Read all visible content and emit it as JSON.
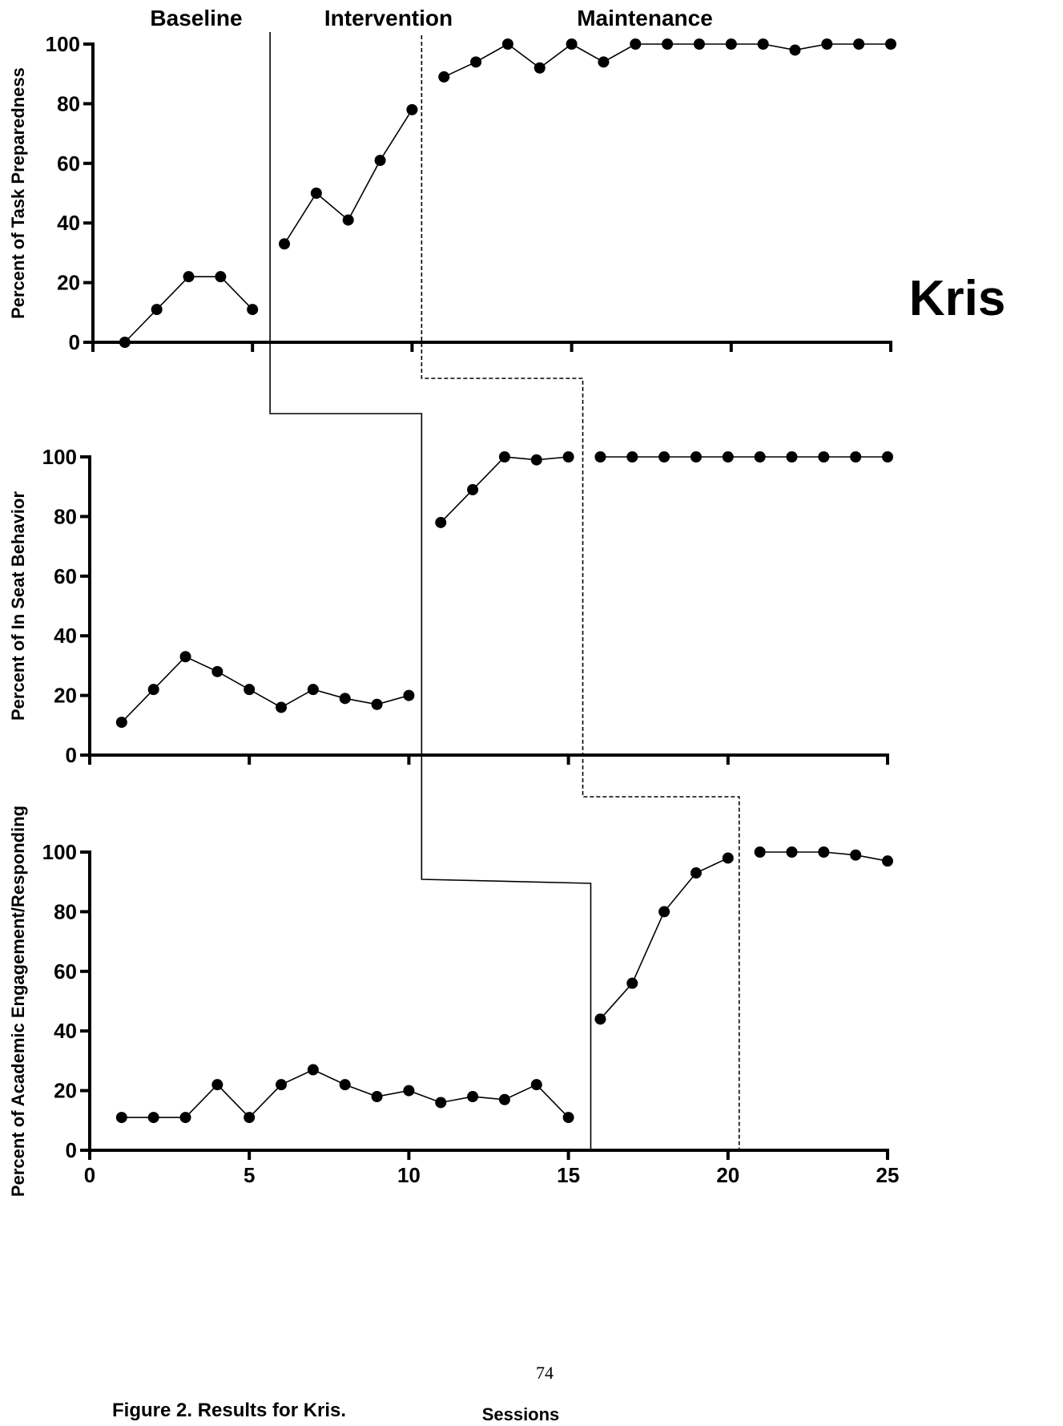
{
  "phases": {
    "baseline": "Baseline",
    "intervention": "Intervention",
    "maintenance": "Maintenance"
  },
  "participant": "Kris",
  "page_number": "74",
  "caption": "Figure 2. Results for Kris.",
  "x_axis_title": "Sessions",
  "chart_data": [
    {
      "type": "line",
      "ylabel": "Percent of Task Preparedness",
      "ylim": [
        0,
        100
      ],
      "xlim": [
        0,
        25
      ],
      "yticks": [
        0,
        20,
        40,
        60,
        80,
        100
      ],
      "xticks": [
        0,
        5,
        10,
        15,
        20,
        25
      ],
      "show_x_tick_labels": false,
      "series": [
        {
          "x": [
            1,
            2,
            3,
            4,
            5
          ],
          "values": [
            0,
            11,
            22,
            22,
            11
          ]
        },
        {
          "x": [
            6,
            7,
            8,
            9,
            10
          ],
          "values": [
            33,
            50,
            41,
            61,
            78
          ]
        },
        {
          "x": [
            11,
            12,
            13,
            14,
            15,
            16,
            17,
            18,
            19,
            20,
            21,
            22,
            23,
            24,
            25
          ],
          "values": [
            89,
            94,
            100,
            92,
            100,
            94,
            100,
            100,
            100,
            100,
            100,
            98,
            100,
            100,
            100
          ]
        }
      ]
    },
    {
      "type": "line",
      "ylabel": "Percent of In Seat Behavior",
      "ylim": [
        0,
        100
      ],
      "xlim": [
        0,
        25
      ],
      "yticks": [
        0,
        20,
        40,
        60,
        80,
        100
      ],
      "xticks": [
        0,
        5,
        10,
        15,
        20,
        25
      ],
      "show_x_tick_labels": false,
      "series": [
        {
          "x": [
            1,
            2,
            3,
            4,
            5,
            6,
            7,
            8,
            9,
            10
          ],
          "values": [
            11,
            22,
            33,
            28,
            22,
            16,
            22,
            19,
            17,
            20
          ]
        },
        {
          "x": [
            11,
            12,
            13,
            14,
            15
          ],
          "values": [
            78,
            89,
            100,
            99,
            100
          ]
        },
        {
          "x": [
            16,
            17,
            18,
            19,
            20,
            21,
            22,
            23,
            24,
            25
          ],
          "values": [
            100,
            100,
            100,
            100,
            100,
            100,
            100,
            100,
            100,
            100
          ]
        }
      ]
    },
    {
      "type": "line",
      "ylabel": "Percent of Academic Engagement/Responding",
      "ylim": [
        0,
        100
      ],
      "xlim": [
        0,
        25
      ],
      "yticks": [
        0,
        20,
        40,
        60,
        80,
        100
      ],
      "xticks": [
        0,
        5,
        10,
        15,
        20,
        25
      ],
      "show_x_tick_labels": true,
      "xlabel": "Sessions",
      "series": [
        {
          "x": [
            1,
            2,
            3,
            4,
            5,
            6,
            7,
            8,
            9,
            10,
            11,
            12,
            13,
            14,
            15
          ],
          "values": [
            11,
            11,
            11,
            22,
            11,
            22,
            27,
            22,
            18,
            20,
            16,
            18,
            17,
            22,
            11
          ]
        },
        {
          "x": [
            16,
            17,
            18,
            19,
            20
          ],
          "values": [
            44,
            56,
            80,
            93,
            98
          ]
        },
        {
          "x": [
            21,
            22,
            23,
            24,
            25
          ],
          "values": [
            100,
            100,
            100,
            99,
            97
          ]
        }
      ]
    }
  ]
}
